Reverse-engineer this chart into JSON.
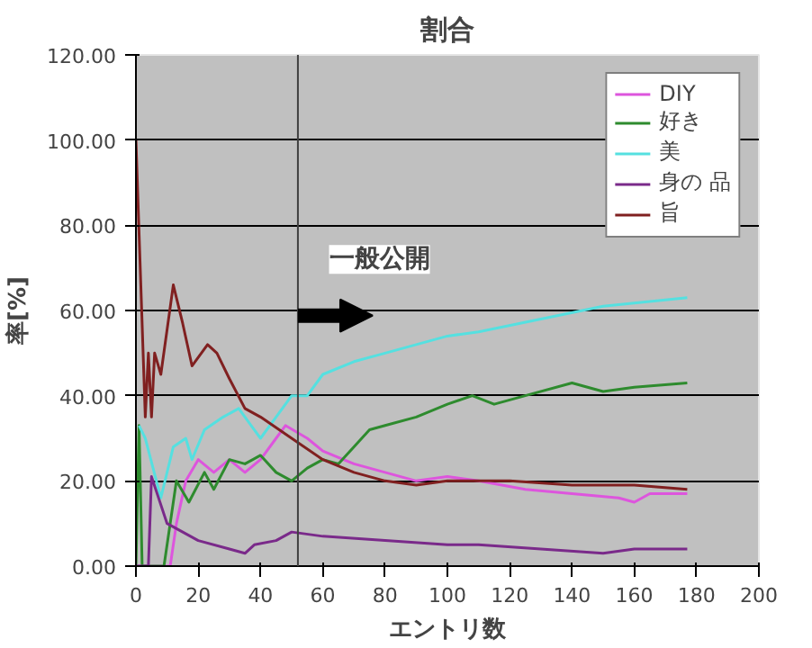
{
  "chart_data": {
    "type": "line",
    "title": "割合",
    "xlabel": "エントリ数",
    "ylabel": "率[%]",
    "xlim": [
      0,
      200
    ],
    "ylim": [
      0,
      120
    ],
    "xticks": [
      0,
      20,
      40,
      60,
      80,
      100,
      120,
      140,
      160,
      180,
      200
    ],
    "yticks": [
      {
        "value": 0,
        "label": "0.00"
      },
      {
        "value": 20,
        "label": "20.00"
      },
      {
        "value": 40,
        "label": "40.00"
      },
      {
        "value": 60,
        "label": "60.00"
      },
      {
        "value": 80,
        "label": "80.00"
      },
      {
        "value": 100,
        "label": "100.00"
      },
      {
        "value": 120,
        "label": "120.00"
      }
    ],
    "grid": "y",
    "legend": "top right",
    "marker": "none",
    "line_style": "solid",
    "ref_lines": [
      {
        "axis": "x",
        "value": 52,
        "color": "#404040"
      }
    ],
    "annotations": [
      "一般公開"
    ],
    "series": [
      {
        "name": "DIY",
        "color": "#dd55dd",
        "x": [
          0,
          11,
          13,
          16,
          20,
          25,
          30,
          35,
          40,
          45,
          48,
          55,
          60,
          70,
          80,
          90,
          100,
          110,
          125,
          140,
          155,
          160,
          165,
          177
        ],
        "values": [
          0,
          0,
          10,
          20,
          25,
          22,
          25,
          22,
          25,
          30,
          33,
          30,
          27,
          24,
          22,
          20,
          21,
          20,
          18,
          17,
          16,
          15,
          17,
          17
        ]
      },
      {
        "name": "好き",
        "color": "#2e8b2e",
        "x": [
          0,
          1,
          2,
          9,
          13,
          17,
          22,
          25,
          30,
          35,
          40,
          45,
          50,
          55,
          60,
          65,
          70,
          75,
          80,
          90,
          100,
          108,
          115,
          125,
          140,
          150,
          160,
          177
        ],
        "values": [
          0,
          33,
          0,
          0,
          20,
          15,
          22,
          18,
          25,
          24,
          26,
          22,
          20,
          23,
          25,
          24,
          28,
          32,
          33,
          35,
          38,
          40,
          38,
          40,
          43,
          41,
          42,
          43
        ]
      },
      {
        "name": "美",
        "color": "#55e0e0",
        "x": [
          1,
          3,
          8,
          12,
          16,
          18,
          22,
          28,
          33,
          38,
          40,
          45,
          50,
          55,
          60,
          70,
          80,
          90,
          100,
          110,
          130,
          150,
          177
        ],
        "values": [
          33,
          30,
          16,
          28,
          30,
          25,
          32,
          35,
          37,
          32,
          30,
          35,
          40,
          40,
          45,
          48,
          50,
          52,
          54,
          55,
          58,
          61,
          63
        ]
      },
      {
        "name": "身の 品",
        "color": "#7a2a8a",
        "x": [
          0,
          4,
          5,
          10,
          20,
          30,
          35,
          38,
          45,
          50,
          60,
          80,
          100,
          110,
          130,
          150,
          160,
          177
        ],
        "values": [
          0,
          0,
          21,
          10,
          6,
          4,
          3,
          5,
          6,
          8,
          7,
          6,
          5,
          5,
          4,
          3,
          4,
          4
        ]
      },
      {
        "name": "旨",
        "color": "#802020",
        "x": [
          0,
          3,
          4,
          5,
          6,
          8,
          12,
          15,
          18,
          23,
          26,
          30,
          35,
          40,
          50,
          60,
          70,
          80,
          90,
          100,
          120,
          140,
          160,
          177
        ],
        "values": [
          100,
          35,
          50,
          35,
          50,
          45,
          66,
          57,
          47,
          52,
          50,
          44,
          37,
          35,
          30,
          25,
          22,
          20,
          19,
          20,
          20,
          19,
          19,
          18
        ]
      }
    ]
  }
}
